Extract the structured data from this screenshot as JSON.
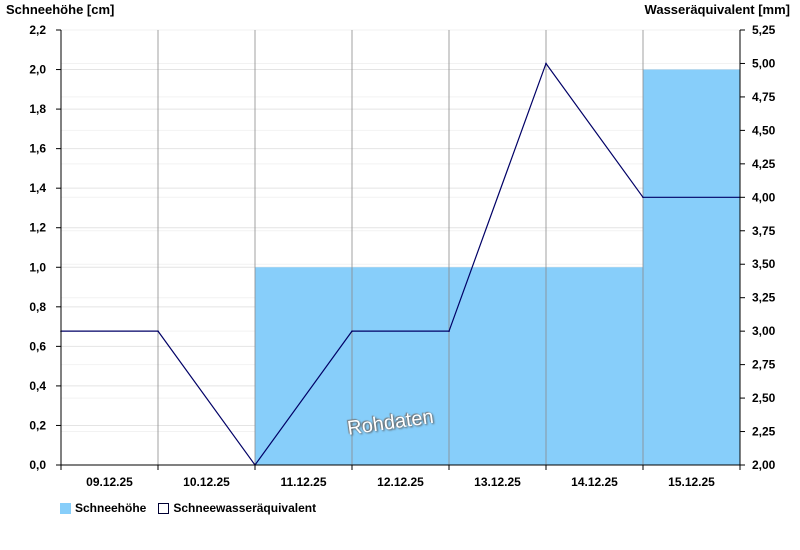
{
  "chart_data": {
    "type": "bar",
    "categories": [
      "09.12.25",
      "10.12.25",
      "11.12.25",
      "12.12.25",
      "13.12.25",
      "14.12.25",
      "15.12.25"
    ],
    "ylabel": "Schneehöhe [cm]",
    "ylabel_right": "Wasseräquivalent [mm]",
    "ylim": [
      0,
      2.2
    ],
    "ylim_right": [
      2.0,
      5.25
    ],
    "yticks": [
      "0,0",
      "0,2",
      "0,4",
      "0,6",
      "0,8",
      "1,0",
      "1,2",
      "1,4",
      "1,6",
      "1,8",
      "2,0",
      "2,2"
    ],
    "yticks_right": [
      "2,00",
      "2,25",
      "2,50",
      "2,75",
      "3,00",
      "3,25",
      "3,50",
      "3,75",
      "4,00",
      "4,25",
      "4,50",
      "4,75",
      "5,00",
      "5,25"
    ],
    "bars": {
      "name": "Schneehöhe",
      "values": [
        0,
        0,
        1.0,
        1.0,
        1.0,
        1.0,
        2.0
      ]
    },
    "line": {
      "name": "Schneewasseräquivalent",
      "x": [
        0,
        1,
        2,
        3,
        4,
        5,
        6,
        7
      ],
      "values": [
        3.0,
        3.0,
        2.0,
        3.0,
        3.0,
        5.0,
        4.0,
        4.0
      ]
    },
    "grid": true,
    "legend_position": "bottom-left",
    "colors": {
      "bar": "#87cefa",
      "line": "#000066",
      "grid": "#e4e4e4"
    }
  },
  "legend": {
    "bar_label": "Schneehöhe",
    "line_label": "Schneewasseräquivalent"
  },
  "watermark": "Rohdaten"
}
